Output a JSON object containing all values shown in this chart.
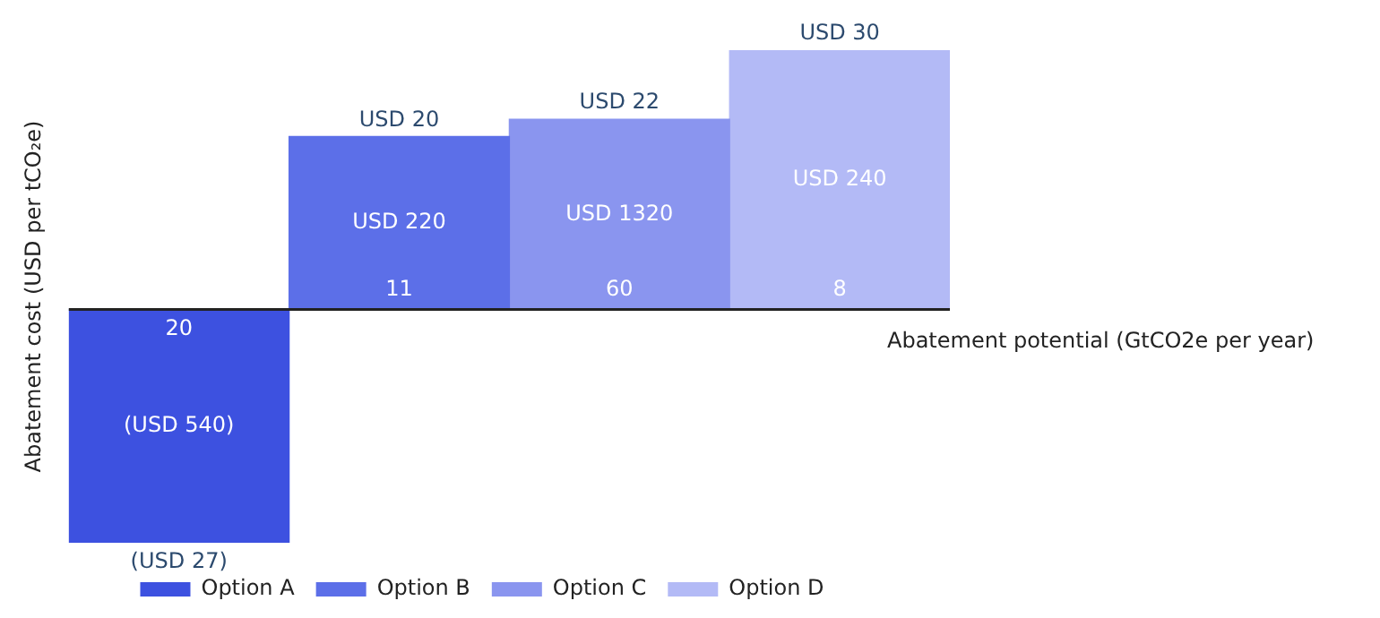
{
  "chart_data": {
    "type": "bar",
    "xlabel": "Abatement potential (GtCO2e per year)",
    "ylabel": "Abatement cost (USD per tCO₂e)",
    "categories": [
      "20",
      "11",
      "60",
      "8"
    ],
    "series": [
      {
        "name": "Option A",
        "color": "#3d51e0",
        "values": [
          -27,
          null,
          null,
          null
        ],
        "value_labels": [
          "(USD 27)",
          null,
          null,
          null
        ]
      },
      {
        "name": "Option B",
        "color": "#5c6fe8",
        "values": [
          null,
          20,
          null,
          null
        ],
        "value_labels": [
          null,
          "USD 20",
          null,
          null
        ]
      },
      {
        "name": "Option C",
        "color": "#8a95ef",
        "values": [
          null,
          null,
          22,
          null
        ],
        "value_labels": [
          null,
          null,
          "USD 22",
          null
        ]
      },
      {
        "name": "Option D",
        "color": "#b3baf6",
        "values": [
          null,
          null,
          null,
          30
        ],
        "value_labels": [
          null,
          null,
          null,
          "USD 30"
        ]
      }
    ],
    "annotations": [
      "(USD 540)",
      "USD 220",
      "USD 1320",
      "USD 240"
    ],
    "grid": false,
    "legend": "bottom"
  }
}
